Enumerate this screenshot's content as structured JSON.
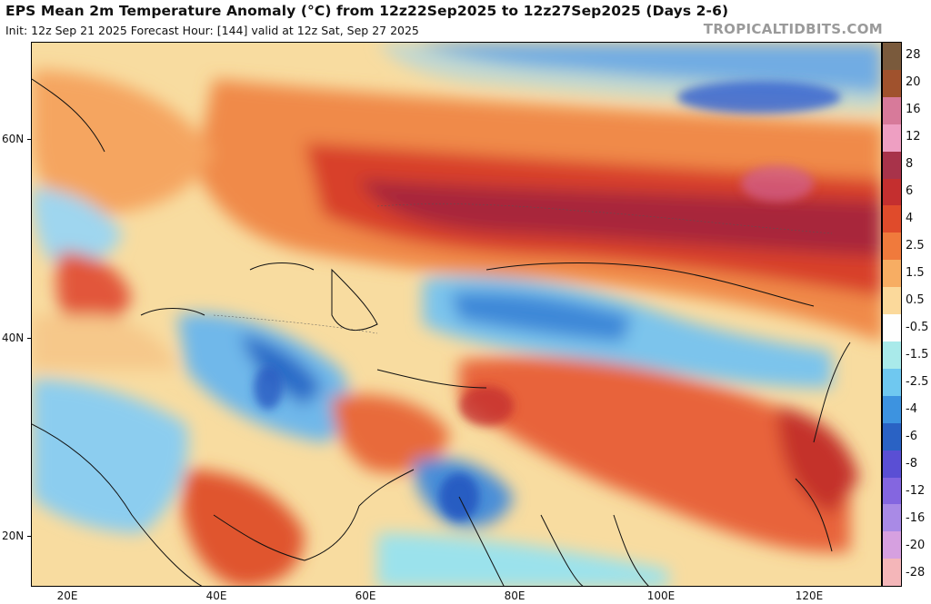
{
  "header": {
    "title": "EPS Mean 2m Temperature Anomaly (°C) from 12z22Sep2025 to 12z27Sep2025 (Days 2-6)",
    "subtitle": "Init: 12z Sep 21 2025   Forecast Hour: [144]   valid at 12z Sat, Sep 27 2025",
    "brand": "TROPICALTIDBITS.COM"
  },
  "map": {
    "lat_labels": [
      "60N",
      "40N",
      "20N"
    ],
    "lon_labels": [
      "20E",
      "40E",
      "60E",
      "80E",
      "100E",
      "120E"
    ],
    "lat_range": [
      15,
      70
    ],
    "lon_range": [
      16,
      130
    ]
  },
  "colorbar": {
    "labels": [
      "28",
      "20",
      "16",
      "12",
      "8",
      "6",
      "4",
      "2.5",
      "1.5",
      "0.5",
      "-0.5",
      "-1.5",
      "-2.5",
      "-4",
      "-6",
      "-8",
      "-12",
      "-16",
      "-20",
      "-28"
    ],
    "colors": [
      "#7a5a3c",
      "#a0522d",
      "#d77a9a",
      "#ee9fc2",
      "#a8334a",
      "#c42f2f",
      "#e04b2b",
      "#f07a3c",
      "#f7ad63",
      "#fbd99b",
      "#fefefe",
      "#a9eaea",
      "#6fc8f0",
      "#3d93e0",
      "#2a62c4",
      "#5a4fd4",
      "#8466e0",
      "#a98ae6",
      "#d6a0e0",
      "#f4b6b9"
    ]
  }
}
